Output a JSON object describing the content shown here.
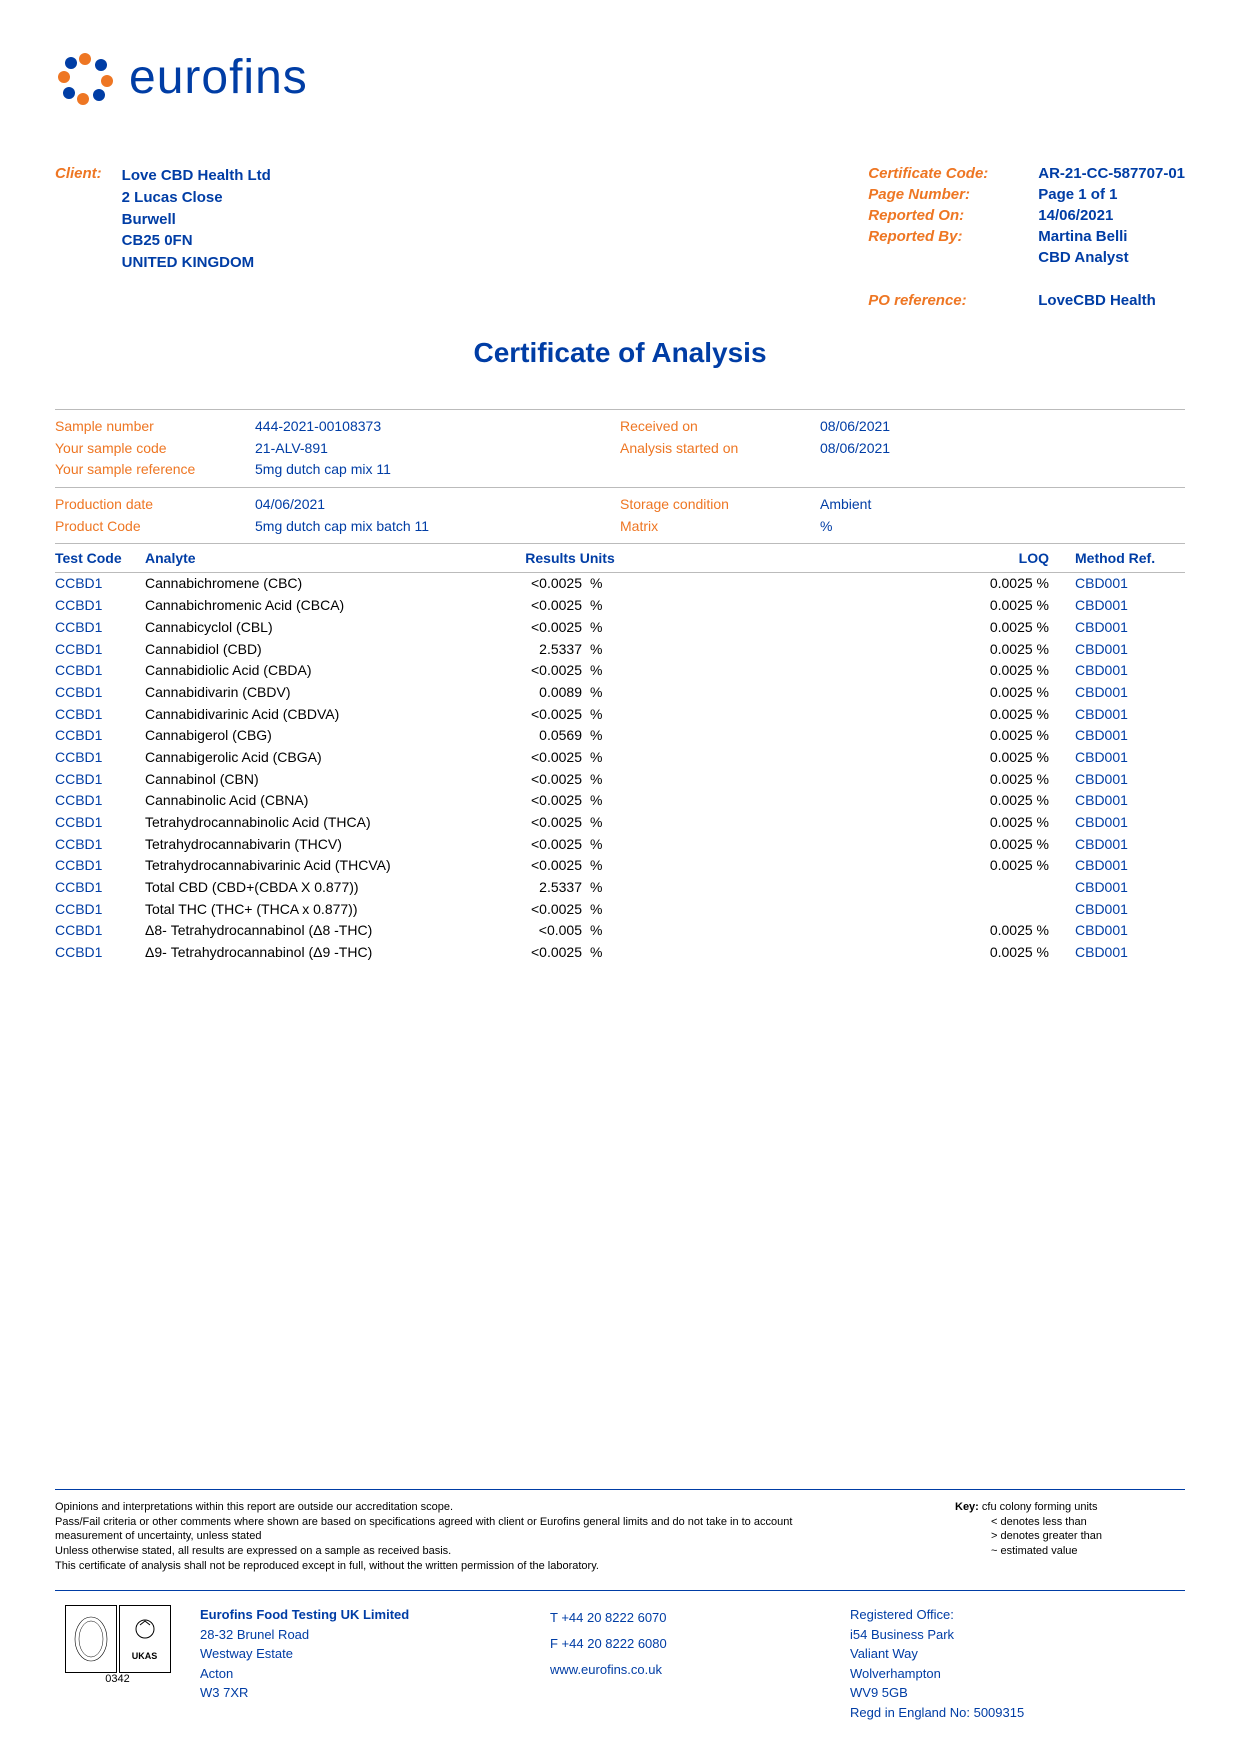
{
  "logo": {
    "text": "eurofins",
    "color": "#003da5",
    "dots": [
      {
        "c": "#ee7623"
      },
      {
        "c": "#003da5"
      },
      {
        "c": "#ee7623"
      },
      {
        "c": "#003da5"
      },
      {
        "c": "#ee7623"
      },
      {
        "c": "#003da5"
      },
      {
        "c": "#ee7623"
      },
      {
        "c": "#003da5"
      }
    ]
  },
  "client": {
    "label": "Client:",
    "name": "Love CBD Health Ltd",
    "addr1": "2 Lucas Close",
    "addr2": "Burwell",
    "addr3": "CB25 0FN",
    "addr4": "UNITED KINGDOM"
  },
  "cert": {
    "code_label": "Certificate Code:",
    "code": "AR-21-CC-587707-01",
    "page_label": "Page Number:",
    "page": "Page 1 of 1",
    "reported_on_label": "Reported On:",
    "reported_on": "14/06/2021",
    "reported_by_label": "Reported By:",
    "reported_by": "Martina Belli",
    "reported_by_title": "CBD Analyst",
    "po_label": "PO reference:",
    "po": "LoveCBD Health"
  },
  "title": "Certificate of Analysis",
  "sample1": {
    "l1": "Sample number",
    "v1": "444-2021-00108373",
    "l2": "Your sample code",
    "v2": "21-ALV-891",
    "l3": "Your sample reference",
    "v3": "5mg dutch cap mix 11",
    "r1l": "Received on",
    "r1v": "08/06/2021",
    "r2l": "Analysis started on",
    "r2v": "08/06/2021"
  },
  "sample2": {
    "l1": "Production date",
    "v1": "04/06/2021",
    "l2": "Product Code",
    "v2": "5mg dutch cap mix batch 11",
    "r1l": "Storage condition",
    "r1v": "Ambient",
    "r2l": "Matrix",
    "r2v": "%"
  },
  "table": {
    "headers": {
      "code": "Test Code",
      "analyte": "Analyte",
      "results_units": "Results Units",
      "loq": "LOQ",
      "method": "Method Ref."
    },
    "rows": [
      {
        "code": "CCBD1",
        "analyte": "Cannabichromene (CBC)",
        "result": "<0.0025",
        "unit": "%",
        "loq": "0.0025 %",
        "method": "CBD001"
      },
      {
        "code": "CCBD1",
        "analyte": "Cannabichromenic Acid (CBCA)",
        "result": "<0.0025",
        "unit": "%",
        "loq": "0.0025 %",
        "method": "CBD001"
      },
      {
        "code": "CCBD1",
        "analyte": "Cannabicyclol (CBL)",
        "result": "<0.0025",
        "unit": "%",
        "loq": "0.0025 %",
        "method": "CBD001"
      },
      {
        "code": "CCBD1",
        "analyte": "Cannabidiol (CBD)",
        "result": "2.5337",
        "unit": "%",
        "loq": "0.0025 %",
        "method": "CBD001"
      },
      {
        "code": "CCBD1",
        "analyte": "Cannabidiolic Acid (CBDA)",
        "result": "<0.0025",
        "unit": "%",
        "loq": "0.0025 %",
        "method": "CBD001"
      },
      {
        "code": "CCBD1",
        "analyte": "Cannabidivarin (CBDV)",
        "result": "0.0089",
        "unit": "%",
        "loq": "0.0025 %",
        "method": "CBD001"
      },
      {
        "code": "CCBD1",
        "analyte": "Cannabidivarinic Acid (CBDVA)",
        "result": "<0.0025",
        "unit": "%",
        "loq": "0.0025 %",
        "method": "CBD001"
      },
      {
        "code": "CCBD1",
        "analyte": "Cannabigerol (CBG)",
        "result": "0.0569",
        "unit": "%",
        "loq": "0.0025 %",
        "method": "CBD001"
      },
      {
        "code": "CCBD1",
        "analyte": "Cannabigerolic Acid (CBGA)",
        "result": "<0.0025",
        "unit": "%",
        "loq": "0.0025 %",
        "method": "CBD001"
      },
      {
        "code": "CCBD1",
        "analyte": "Cannabinol (CBN)",
        "result": "<0.0025",
        "unit": "%",
        "loq": "0.0025 %",
        "method": "CBD001"
      },
      {
        "code": "CCBD1",
        "analyte": "Cannabinolic Acid (CBNA)",
        "result": "<0.0025",
        "unit": "%",
        "loq": "0.0025 %",
        "method": "CBD001"
      },
      {
        "code": "CCBD1",
        "analyte": "Tetrahydrocannabinolic Acid (THCA)",
        "result": "<0.0025",
        "unit": "%",
        "loq": "0.0025 %",
        "method": "CBD001"
      },
      {
        "code": "CCBD1",
        "analyte": "Tetrahydrocannabivarin (THCV)",
        "result": "<0.0025",
        "unit": "%",
        "loq": "0.0025 %",
        "method": "CBD001"
      },
      {
        "code": "CCBD1",
        "analyte": "Tetrahydrocannabivarinic Acid (THCVA)",
        "result": "<0.0025",
        "unit": "%",
        "loq": "0.0025 %",
        "method": "CBD001"
      },
      {
        "code": "CCBD1",
        "analyte": "Total CBD (CBD+(CBDA X 0.877))",
        "result": "2.5337",
        "unit": "%",
        "loq": "",
        "method": "CBD001"
      },
      {
        "code": "CCBD1",
        "analyte": "Total THC (THC+ (THCA x 0.877))",
        "result": "<0.0025",
        "unit": "%",
        "loq": "",
        "method": "CBD001"
      },
      {
        "code": "CCBD1",
        "analyte": "Δ8- Tetrahydrocannabinol (Δ8 -THC)",
        "result": "<0.005",
        "unit": "%",
        "loq": "0.0025 %",
        "method": "CBD001"
      },
      {
        "code": "CCBD1",
        "analyte": "Δ9- Tetrahydrocannabinol (Δ9 -THC)",
        "result": "<0.0025",
        "unit": "%",
        "loq": "0.0025 %",
        "method": "CBD001"
      }
    ]
  },
  "disclaimer": {
    "l1": "Opinions and interpretations within this report are outside our accreditation scope.",
    "l2": "Pass/Fail criteria or other comments where shown are based on specifications agreed with client or Eurofins general limits and do not take in to account measurement of uncertainty, unless stated",
    "l3": "Unless otherwise stated, all results are expressed on a sample as received basis.",
    "l4": "This certificate of analysis shall not be reproduced except in full, without the written permission of the laboratory."
  },
  "key": {
    "title": "Key:",
    "i1": "cfu colony forming units",
    "i2": "< denotes less than",
    "i3": "> denotes greater than",
    "i4": "~ estimated value"
  },
  "footer": {
    "accred_num": "0342",
    "ukas": "UKAS",
    "company": {
      "name": "Eurofins Food Testing UK Limited",
      "a1": "28-32 Brunel Road",
      "a2": "Westway Estate",
      "a3": "Acton",
      "a4": "W3 7XR"
    },
    "tel": "T  +44 20 8222 6070",
    "fax": "F  +44 20 8222 6080",
    "web": "www.eurofins.co.uk",
    "reg": {
      "title": "Registered Office:",
      "a1": "i54 Business Park",
      "a2": "Valiant Way",
      "a3": "Wolverhampton",
      "a4": "WV9 5GB",
      "a5": "Regd in England No: 5009315"
    }
  }
}
